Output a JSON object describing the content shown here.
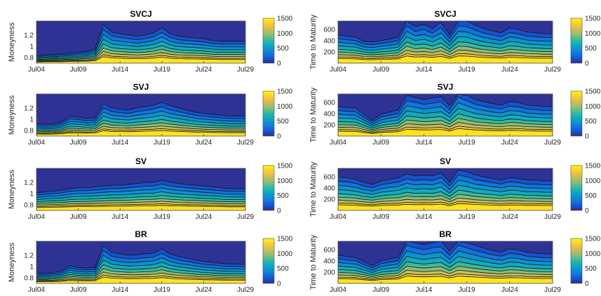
{
  "colors": {
    "parula": [
      "#352a87",
      "#0f5cdd",
      "#1481d6",
      "#06a4ca",
      "#2eb7a4",
      "#87bf77",
      "#d1bb59",
      "#fec832",
      "#f9fb0e"
    ],
    "contour_line": "#141414",
    "axis": "#4a4a4a"
  },
  "colorbar": {
    "ticks": [
      "1500",
      "1000",
      "500",
      "0"
    ],
    "range": [
      0,
      1500
    ]
  },
  "chart_data": [
    {
      "type": "heatmap",
      "title": "SVCJ",
      "ylabel": "Moneyness",
      "xlabel": "",
      "xticks": [
        "Jul04",
        "Jul09",
        "Jul14",
        "Jul19",
        "Jul24",
        "Jul29"
      ],
      "yticks": [
        "1.2",
        "1",
        "0.8"
      ],
      "ylim": [
        0.7,
        1.45
      ],
      "clim": [
        0,
        1500
      ],
      "profile": [
        0.05,
        0.08,
        0.09,
        0.1,
        0.12,
        0.14,
        0.16,
        0.22,
        0.8,
        0.62,
        0.58,
        0.55,
        0.52,
        0.55,
        0.6,
        0.72,
        0.58,
        0.52,
        0.5,
        0.48,
        0.46,
        0.42,
        0.4,
        0.4,
        0.4,
        0.4
      ]
    },
    {
      "type": "heatmap",
      "title": "SVCJ",
      "ylabel": "Time to Maturity",
      "xlabel": "",
      "xticks": [
        "Jul04",
        "Jul09",
        "Jul14",
        "Jul19",
        "Jul24",
        "Jul29"
      ],
      "yticks": [
        "600",
        "400",
        "200"
      ],
      "ylim": [
        0,
        750
      ],
      "clim": [
        0,
        1500
      ],
      "profile": [
        0.55,
        0.52,
        0.5,
        0.4,
        0.38,
        0.42,
        0.45,
        0.5,
        0.9,
        0.75,
        0.8,
        0.7,
        0.85,
        0.55,
        0.9,
        0.88,
        0.78,
        0.7,
        0.65,
        0.6,
        0.72,
        0.68,
        0.62,
        0.6,
        0.58,
        0.58
      ]
    },
    {
      "type": "heatmap",
      "title": "SVJ",
      "ylabel": "Moneyness",
      "xlabel": "",
      "xticks": [
        "Jul04",
        "Jul09",
        "Jul14",
        "Jul19",
        "Jul24",
        "Jul29"
      ],
      "yticks": [
        "1.2",
        "1",
        "0.8"
      ],
      "ylim": [
        0.7,
        1.45
      ],
      "clim": [
        0,
        1500
      ],
      "profile": [
        0.18,
        0.16,
        0.17,
        0.22,
        0.35,
        0.33,
        0.3,
        0.32,
        0.65,
        0.55,
        0.52,
        0.5,
        0.55,
        0.58,
        0.62,
        0.68,
        0.6,
        0.55,
        0.5,
        0.45,
        0.42,
        0.4,
        0.38,
        0.36,
        0.36,
        0.35
      ]
    },
    {
      "type": "heatmap",
      "title": "SVJ",
      "ylabel": "Time to Maturity",
      "xlabel": "",
      "xticks": [
        "Jul04",
        "Jul09",
        "Jul14",
        "Jul19",
        "Jul24",
        "Jul29"
      ],
      "yticks": [
        "600",
        "400",
        "200"
      ],
      "ylim": [
        0,
        750
      ],
      "clim": [
        0,
        1500
      ],
      "profile": [
        0.58,
        0.56,
        0.55,
        0.4,
        0.25,
        0.4,
        0.45,
        0.5,
        0.85,
        0.8,
        0.75,
        0.78,
        0.82,
        0.6,
        0.95,
        0.85,
        0.75,
        0.7,
        0.65,
        0.62,
        0.7,
        0.68,
        0.62,
        0.6,
        0.58,
        0.58
      ]
    },
    {
      "type": "heatmap",
      "title": "SV",
      "ylabel": "Moneyness",
      "xlabel": "",
      "xticks": [
        "Jul04",
        "Jul09",
        "Jul14",
        "Jul19",
        "Jul24",
        "Jul29"
      ],
      "yticks": [
        "1.2",
        "1",
        "0.8"
      ],
      "ylim": [
        0.7,
        1.45
      ],
      "clim": [
        0,
        1500
      ],
      "profile": [
        0.3,
        0.32,
        0.34,
        0.36,
        0.4,
        0.42,
        0.42,
        0.44,
        0.46,
        0.48,
        0.48,
        0.5,
        0.52,
        0.54,
        0.55,
        0.6,
        0.55,
        0.52,
        0.5,
        0.48,
        0.46,
        0.44,
        0.42,
        0.4,
        0.4,
        0.4
      ]
    },
    {
      "type": "heatmap",
      "title": "SV",
      "ylabel": "Time to Maturity",
      "xlabel": "",
      "xticks": [
        "Jul04",
        "Jul09",
        "Jul14",
        "Jul19",
        "Jul24",
        "Jul29"
      ],
      "yticks": [
        "600",
        "400",
        "200"
      ],
      "ylim": [
        0,
        750
      ],
      "clim": [
        0,
        1500
      ],
      "profile": [
        0.68,
        0.66,
        0.62,
        0.55,
        0.5,
        0.58,
        0.62,
        0.65,
        0.75,
        0.7,
        0.72,
        0.7,
        0.78,
        0.55,
        0.85,
        0.8,
        0.72,
        0.68,
        0.64,
        0.6,
        0.66,
        0.64,
        0.6,
        0.6,
        0.58,
        0.58
      ]
    },
    {
      "type": "heatmap",
      "title": "BR",
      "ylabel": "Moneyness",
      "xlabel": "",
      "xticks": [
        "Jul04",
        "Jul09",
        "Jul14",
        "Jul19",
        "Jul24",
        "Jul29"
      ],
      "yticks": [
        "1.2",
        "1",
        "0.8"
      ],
      "ylim": [
        0.7,
        1.45
      ],
      "clim": [
        0,
        1500
      ],
      "profile": [
        0.12,
        0.12,
        0.14,
        0.18,
        0.3,
        0.26,
        0.24,
        0.26,
        0.78,
        0.62,
        0.58,
        0.55,
        0.56,
        0.58,
        0.6,
        0.7,
        0.58,
        0.52,
        0.48,
        0.44,
        0.4,
        0.38,
        0.36,
        0.34,
        0.34,
        0.33
      ]
    },
    {
      "type": "heatmap",
      "title": "BR",
      "ylabel": "Time to Maturity",
      "xlabel": "",
      "xticks": [
        "Jul04",
        "Jul09",
        "Jul14",
        "Jul19",
        "Jul24",
        "Jul29"
      ],
      "yticks": [
        "600",
        "400",
        "200"
      ],
      "ylim": [
        0,
        750
      ],
      "clim": [
        0,
        1500
      ],
      "profile": [
        0.55,
        0.52,
        0.5,
        0.4,
        0.3,
        0.42,
        0.46,
        0.5,
        0.92,
        0.85,
        0.8,
        0.85,
        0.88,
        0.65,
        0.92,
        0.85,
        0.78,
        0.72,
        0.66,
        0.62,
        0.7,
        0.68,
        0.62,
        0.6,
        0.58,
        0.58
      ]
    }
  ]
}
